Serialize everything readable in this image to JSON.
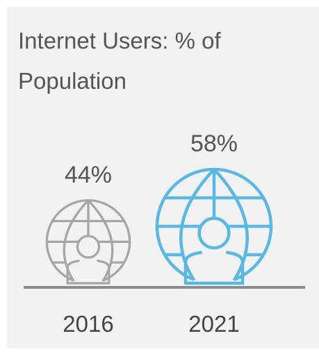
{
  "chart_data": {
    "type": "pictograph",
    "title": "Internet Users: % of Population",
    "unit": "%",
    "categories": [
      "2016",
      "2021"
    ],
    "values": [
      44,
      58
    ],
    "value_labels": [
      "44%",
      "58%"
    ],
    "icon": "globe-person-icon",
    "colors": [
      "#a6a6a6",
      "#5cb8e0"
    ]
  }
}
